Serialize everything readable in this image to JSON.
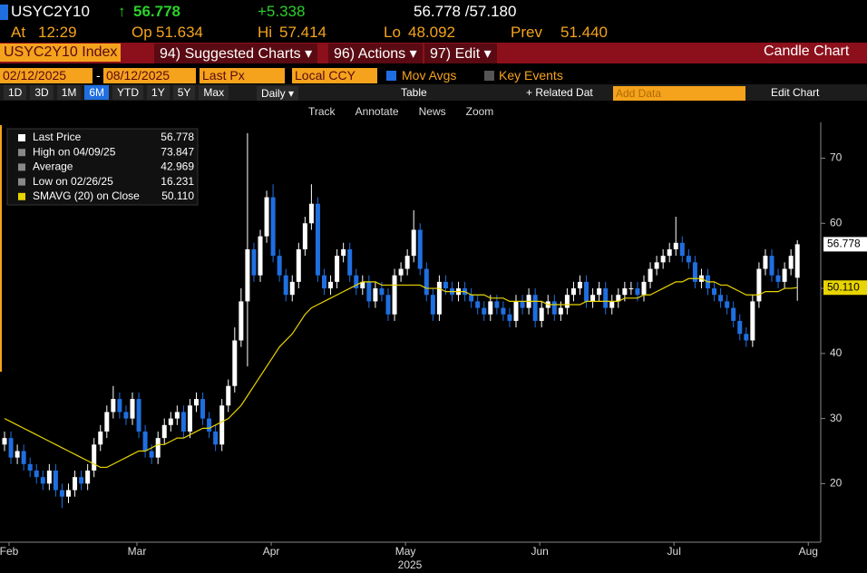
{
  "header": {
    "symbol": "USYC2Y10",
    "last": "56.778",
    "change": "+5.338",
    "bid_ask": "56.778 /57.180",
    "at_label": "At",
    "at": "12:29",
    "open_label": "Op",
    "open": "51.634",
    "high_label": "Hi",
    "high": "57.414",
    "low_label": "Lo",
    "low": "48.092",
    "prev_label": "Prev",
    "prev": "51.440"
  },
  "menu": {
    "security": "USYC2Y10 Index",
    "suggested": "94) Suggested Charts",
    "actions": "96) Actions",
    "edit": "97) Edit",
    "chart_type": "Candle Chart"
  },
  "settings": {
    "start": "02/12/2025",
    "end": "08/12/2025",
    "field": "Last Px",
    "currency": "Local CCY",
    "mov_avgs": "Mov Avgs",
    "key_events": "Key Events"
  },
  "periods": [
    "1D",
    "3D",
    "1M",
    "6M",
    "YTD",
    "1Y",
    "5Y",
    "Max"
  ],
  "toolbar": {
    "frequency": "Daily",
    "table": "Table",
    "related": "+ Related Dat",
    "add_data": "Add Data",
    "edit_chart": "Edit Chart"
  },
  "tools": [
    "Track",
    "Annotate",
    "News",
    "Zoom"
  ],
  "chart_data": {
    "type": "candlestick",
    "open": [
      26,
      27,
      24,
      25,
      23,
      22,
      21,
      20,
      22,
      19,
      18,
      19,
      21,
      20,
      22,
      26,
      28,
      31,
      33,
      31,
      30,
      33,
      28,
      25,
      24,
      27,
      29,
      30,
      31,
      28,
      32,
      33,
      30,
      28,
      26,
      32,
      35,
      42,
      48,
      56,
      52,
      58,
      64,
      55,
      52,
      49,
      51,
      56,
      60,
      63,
      52,
      50,
      51,
      55,
      56,
      52,
      50,
      51,
      48,
      50,
      49,
      46,
      52,
      53,
      55,
      59,
      53,
      49,
      46,
      51,
      50,
      49,
      50,
      49,
      48,
      47,
      46,
      48,
      47,
      46,
      45,
      48,
      47,
      49,
      45,
      47,
      48,
      46,
      47,
      49,
      50,
      51,
      48,
      49,
      50,
      47,
      48,
      49,
      50,
      50,
      49,
      51,
      53,
      54,
      55,
      56,
      57,
      55,
      54,
      51,
      52,
      50,
      49,
      48,
      47,
      45,
      43,
      42,
      48,
      53,
      55,
      52,
      51,
      53,
      51.634
    ],
    "high": [
      28,
      28,
      26,
      26,
      24,
      23,
      22,
      23,
      23,
      20,
      20,
      22,
      22,
      23,
      27,
      29,
      32,
      35,
      34,
      32,
      34,
      34,
      29,
      26,
      28,
      30,
      31,
      32,
      32,
      33,
      34,
      34,
      31,
      29,
      33,
      36,
      44,
      50,
      73.847,
      57,
      59,
      65,
      66,
      56,
      53,
      52,
      57,
      61,
      66,
      64,
      53,
      52,
      56,
      57,
      57,
      53,
      52,
      52,
      51,
      51,
      50,
      53,
      54,
      56,
      62,
      60,
      54,
      50,
      52,
      52,
      51,
      51,
      51,
      50,
      49,
      48,
      49,
      49,
      48,
      47,
      49,
      49,
      50,
      50,
      48,
      49,
      49,
      48,
      50,
      51,
      52,
      52,
      50,
      51,
      51,
      49,
      50,
      51,
      51,
      51,
      52,
      54,
      55,
      56,
      57,
      61,
      58,
      56,
      55,
      53,
      53,
      51,
      50,
      49,
      48,
      46,
      44,
      49,
      54,
      56,
      56,
      53,
      54,
      56,
      57.414
    ],
    "low": [
      25,
      23,
      23,
      22,
      21,
      20,
      19,
      19,
      18,
      16.231,
      17,
      18,
      19,
      19,
      21,
      25,
      27,
      30,
      30,
      29,
      29,
      27,
      24,
      23,
      23,
      26,
      28,
      29,
      27,
      27,
      31,
      29,
      27,
      25,
      25,
      31,
      34,
      41,
      38,
      51,
      51,
      57,
      54,
      51,
      48,
      48,
      50,
      55,
      59,
      51,
      49,
      49,
      50,
      54,
      51,
      49,
      49,
      47,
      47,
      48,
      45,
      45,
      51,
      52,
      54,
      52,
      48,
      45,
      45,
      49,
      48,
      48,
      48,
      47,
      46,
      45,
      45,
      46,
      45,
      44,
      44,
      46,
      46,
      44,
      44,
      46,
      45,
      45,
      46,
      48,
      49,
      47,
      47,
      48,
      46,
      46,
      47,
      48,
      49,
      48,
      48,
      50,
      52,
      53,
      54,
      55,
      54,
      53,
      50,
      50,
      49,
      48,
      47,
      46,
      44,
      42,
      41,
      41,
      47,
      52,
      51,
      50,
      50,
      52,
      48.092
    ],
    "close": [
      27,
      24,
      25,
      23,
      22,
      21,
      20,
      22,
      19,
      18,
      19,
      21,
      20,
      22,
      26,
      28,
      31,
      33,
      31,
      30,
      33,
      28,
      25,
      24,
      27,
      29,
      30,
      31,
      28,
      32,
      33,
      30,
      28,
      26,
      32,
      35,
      42,
      48,
      56,
      52,
      58,
      64,
      55,
      52,
      49,
      51,
      56,
      60,
      63,
      52,
      50,
      51,
      55,
      56,
      52,
      50,
      51,
      48,
      50,
      49,
      46,
      52,
      53,
      55,
      59,
      53,
      49,
      46,
      51,
      50,
      49,
      50,
      49,
      48,
      47,
      46,
      48,
      47,
      46,
      45,
      48,
      47,
      49,
      45,
      47,
      48,
      46,
      47,
      49,
      50,
      51,
      48,
      49,
      50,
      47,
      48,
      49,
      50,
      50,
      49,
      51,
      53,
      54,
      55,
      56,
      57,
      55,
      54,
      51,
      52,
      50,
      49,
      48,
      47,
      45,
      43,
      42,
      48,
      53,
      55,
      52,
      51,
      53,
      55,
      56.778
    ],
    "up_color": "#ffffff",
    "down_color": "#1f6fe0",
    "moving_average": {
      "name": "SMAVG (20)  on Close",
      "color": "#e8d400",
      "values": [
        30,
        29.5,
        29,
        28.5,
        28,
        27.5,
        27,
        26.5,
        26,
        25.5,
        25,
        24.5,
        24,
        23.5,
        23,
        22.5,
        22.5,
        23,
        23.5,
        24,
        24.5,
        25,
        25,
        25.5,
        26,
        26,
        26.5,
        27,
        27,
        27.5,
        28,
        28.5,
        28.5,
        29,
        29.5,
        30,
        31,
        32,
        33.5,
        35,
        36.5,
        38,
        39.5,
        41,
        42,
        43,
        44.5,
        46,
        47,
        47.5,
        48,
        48.5,
        49,
        49.5,
        50,
        50.5,
        51,
        51,
        51,
        50.5,
        50.5,
        50.5,
        50.5,
        50.5,
        50.5,
        50.5,
        50,
        50,
        50,
        49.5,
        49.5,
        49.5,
        49.5,
        49,
        49,
        49,
        48.5,
        48.5,
        48.5,
        48,
        48,
        48,
        48,
        48,
        48,
        47.5,
        47.5,
        47.5,
        47.5,
        47.5,
        47.5,
        48,
        48,
        48,
        48,
        48,
        48,
        48.5,
        48.5,
        48.5,
        49,
        49,
        49.5,
        50,
        50.5,
        51,
        51,
        51.5,
        51.5,
        51.5,
        51,
        51,
        50.5,
        50.5,
        50,
        49.5,
        49,
        49,
        49,
        49.5,
        49.5,
        49.5,
        50,
        50,
        50.11
      ]
    },
    "legend": [
      {
        "label": "Last Price",
        "value": 56.778
      },
      {
        "label": "High on 04/09/25",
        "value": 73.847
      },
      {
        "label": "Average",
        "value": 42.969
      },
      {
        "label": "Low on 02/26/25",
        "value": 16.231
      },
      {
        "label": "SMAVG (20)  on Close",
        "value": {
          "value": 50.11,
          "label": "50.110"
        }
      }
    ],
    "ylim": [
      11,
      75.5
    ],
    "yticks": [
      20,
      30,
      40,
      50,
      60,
      70
    ],
    "xticks": [
      {
        "value": 0,
        "label": "Feb"
      },
      {
        "value": 20,
        "label": "Mar"
      },
      {
        "value": 41,
        "label": "Apr"
      },
      {
        "value": 62,
        "label": "May"
      },
      {
        "value": 83,
        "label": "Jun"
      },
      {
        "value": 104,
        "label": "Jul"
      },
      {
        "value": 125,
        "label": "Aug"
      }
    ],
    "year_label": "2025"
  }
}
